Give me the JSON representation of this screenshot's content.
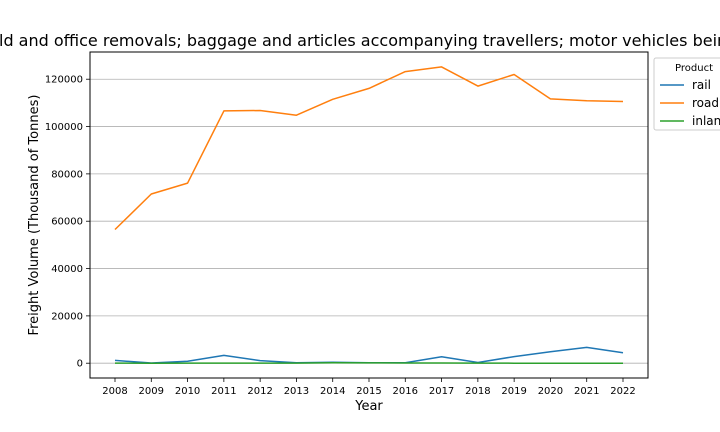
{
  "chart_data": {
    "type": "line",
    "title": "Household and office removals; baggage and articles accompanying travellers; motor vehicles being repaired",
    "xlabel": "Year",
    "ylabel": "Freight Volume (Thousand of Tonnes)",
    "x": [
      "2008",
      "2009",
      "2010",
      "2011",
      "2012",
      "2013",
      "2014",
      "2015",
      "2016",
      "2017",
      "2018",
      "2019",
      "2020",
      "2021",
      "2022"
    ],
    "ylim": [
      -6250,
      131500
    ],
    "yticks": [
      "0",
      "20000",
      "40000",
      "60000",
      "80000",
      "100000",
      "120000"
    ],
    "ytick_values": [
      0,
      20000,
      40000,
      60000,
      80000,
      100000,
      120000
    ],
    "grid": "horizontal",
    "legend": {
      "title": "Product",
      "placement": "top-right outside"
    },
    "series": [
      {
        "name": "rail",
        "color": "#1f77b4",
        "values": [
          1200,
          100,
          800,
          3300,
          1100,
          200,
          400,
          200,
          200,
          2700,
          300,
          2800,
          4800,
          6700,
          4400
        ]
      },
      {
        "name": "road",
        "color": "#ff7f0e",
        "values": [
          56500,
          71500,
          76100,
          106600,
          106800,
          104800,
          111500,
          116100,
          123200,
          125200,
          117100,
          122000,
          111700,
          110900,
          110600
        ]
      },
      {
        "name": "inland waterway",
        "color": "#2ca02c",
        "values": [
          50,
          20,
          30,
          40,
          30,
          30,
          200,
          150,
          100,
          80,
          50,
          20,
          20,
          20,
          20
        ]
      }
    ]
  }
}
